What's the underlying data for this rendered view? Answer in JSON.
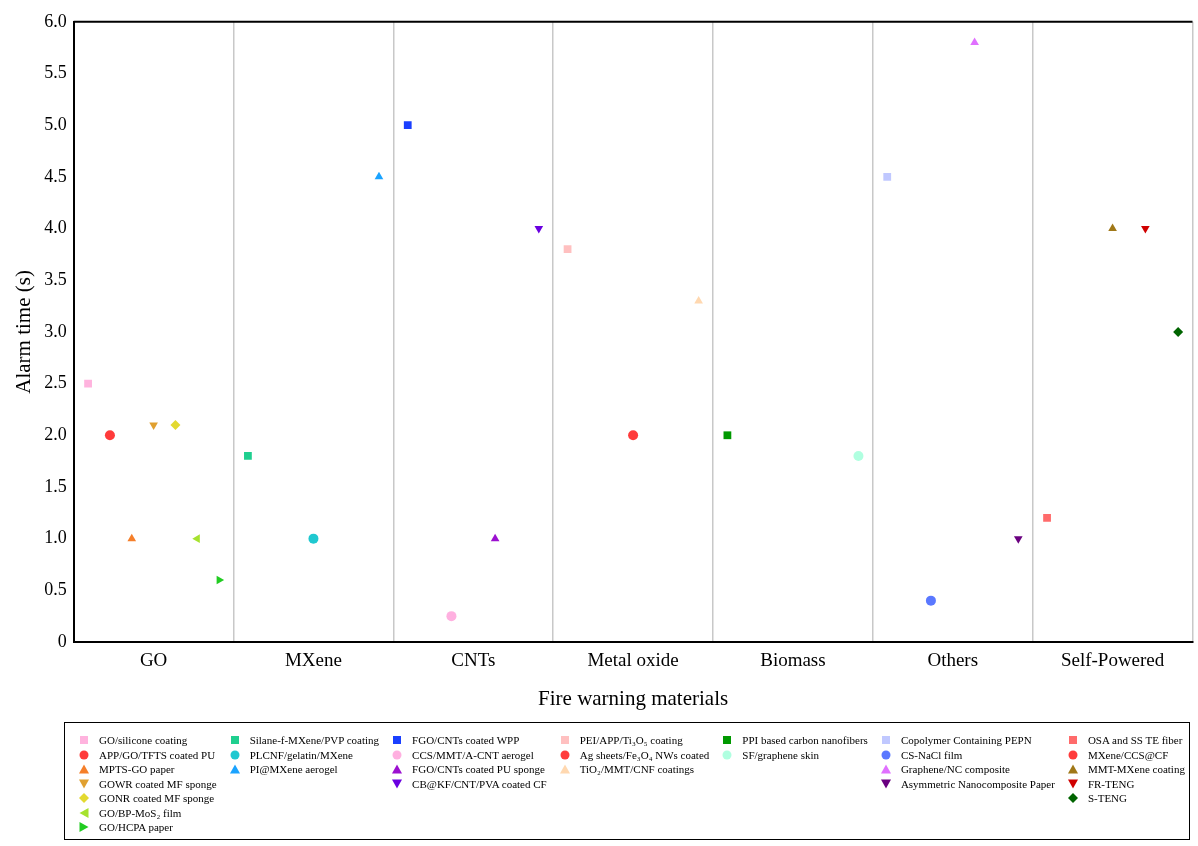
{
  "chart_data": {
    "type": "scatter",
    "xlabel": "Fire warning materials",
    "ylabel": "Alarm time (s)",
    "categories": [
      "GO",
      "MXene",
      "CNTs",
      "Metal oxide",
      "Biomass",
      "Others",
      "Self-Powered"
    ],
    "ylim": [
      0,
      6
    ],
    "yticks": [
      0,
      0.5,
      {
        "value": 1,
        "label": "1.0"
      },
      1.5,
      {
        "value": 2,
        "label": "2.0"
      },
      2.5,
      {
        "value": 3,
        "label": "3.0"
      },
      3.5,
      {
        "value": 4,
        "label": "4.0"
      },
      4.5,
      {
        "value": 5,
        "label": "5.0"
      },
      5.5,
      {
        "value": 6,
        "label": "6.0"
      }
    ],
    "grid": "x",
    "legend": "bottom",
    "series": [
      {
        "name": "GO/silicone coating",
        "color": "#ffb3de",
        "marker": "square",
        "x": [
          "GO"
        ],
        "values": [
          2.5
        ]
      },
      {
        "name": "APP/GO/TFTS coated PU",
        "color": "#ff3b3b",
        "marker": "circle",
        "x": [
          "GO"
        ],
        "values": [
          2.0
        ]
      },
      {
        "name": "MPTS-GO paper",
        "color": "#f57f2a",
        "marker": "triangle",
        "x": [
          "GO"
        ],
        "values": [
          1.0
        ]
      },
      {
        "name": "GOWR coated MF sponge",
        "color": "#e0a030",
        "marker": "triangle-down",
        "x": [
          "GO"
        ],
        "values": [
          2.1
        ]
      },
      {
        "name": "GONR coated MF sponge",
        "color": "#e3d930",
        "marker": "diamond",
        "x": [
          "GO"
        ],
        "values": [
          2.1
        ]
      },
      {
        "name": "GO/BP-MoS₂ film",
        "color": "#a6e22e",
        "marker": "triangle-left",
        "x": [
          "GO"
        ],
        "values": [
          1.0
        ]
      },
      {
        "name": "GO/HCPA paper",
        "color": "#22cc22",
        "marker": "triangle-right",
        "x": [
          "GO"
        ],
        "values": [
          0.6
        ]
      },
      {
        "name": "Silane-f-MXene/PVP coating",
        "color": "#1fcf8f",
        "marker": "square",
        "x": [
          "MXene"
        ],
        "values": [
          1.8
        ]
      },
      {
        "name": "PLCNF/gelatin/MXene",
        "color": "#1fc8d0",
        "marker": "circle",
        "x": [
          "MXene"
        ],
        "values": [
          1.0
        ]
      },
      {
        "name": "PI@MXene aerogel",
        "color": "#1aa3ff",
        "marker": "triangle",
        "x": [
          "MXene"
        ],
        "values": [
          4.5
        ]
      },
      {
        "name": "FGO/CNTs coated WPP",
        "color": "#1a3fff",
        "marker": "square",
        "x": [
          "CNTs"
        ],
        "values": [
          5.0
        ]
      },
      {
        "name": "CCS/MMT/A-CNT aerogel",
        "color": "#ffb0e0",
        "marker": "circle",
        "x": [
          "CNTs"
        ],
        "values": [
          0.25
        ]
      },
      {
        "name": "FGO/CNTs coated PU sponge",
        "color": "#9b10d0",
        "marker": "triangle",
        "x": [
          "CNTs"
        ],
        "values": [
          1.0
        ]
      },
      {
        "name": "CB@KF/CNT/PVA coated CF",
        "color": "#6a00e0",
        "marker": "triangle-down",
        "x": [
          "CNTs"
        ],
        "values": [
          4.0
        ]
      },
      {
        "name": "PEI/APP/Ti₃O₅ coating",
        "color": "#ffc0c0",
        "marker": "square",
        "x": [
          "Metal oxide"
        ],
        "values": [
          3.8
        ]
      },
      {
        "name": "Ag sheets/Fe₃O₄ NWs coated",
        "color": "#ff3b3b",
        "marker": "circle",
        "x": [
          "Metal oxide"
        ],
        "values": [
          2.0
        ]
      },
      {
        "name": "TiO₂/MMT/CNF coatings",
        "color": "#ffd8b0",
        "marker": "triangle",
        "x": [
          "Metal oxide"
        ],
        "values": [
          3.3
        ]
      },
      {
        "name": "PPI based carbon nanofibers",
        "color": "#009900",
        "marker": "square",
        "x": [
          "Biomass"
        ],
        "values": [
          2.0
        ]
      },
      {
        "name": "SF/graphene skin",
        "color": "#b0ffe0",
        "marker": "circle",
        "x": [
          "Biomass"
        ],
        "values": [
          1.8
        ]
      },
      {
        "name": "Copolymer Containing PEPN",
        "color": "#c0c8ff",
        "marker": "square",
        "x": [
          "Others"
        ],
        "values": [
          4.5
        ]
      },
      {
        "name": "CS-NaCl film",
        "color": "#5a78ff",
        "marker": "circle",
        "x": [
          "Others"
        ],
        "values": [
          0.4
        ]
      },
      {
        "name": "Graphene/NC composite",
        "color": "#e070ff",
        "marker": "triangle",
        "x": [
          "Others"
        ],
        "values": [
          5.8
        ]
      },
      {
        "name": "Asymmetric Nanocomposite Paper",
        "color": "#6a0080",
        "marker": "triangle-down",
        "x": [
          "Others"
        ],
        "values": [
          1.0
        ]
      },
      {
        "name": "OSA and SS TE fiber",
        "color": "#ff6b6b",
        "marker": "square",
        "x": [
          "Self-Powered"
        ],
        "values": [
          1.2
        ]
      },
      {
        "name": "MXene/CCS@CF",
        "color": "#ff3b3b",
        "marker": "circle",
        "x": [
          "Self-Powered"
        ],
        "values": [
          null
        ]
      },
      {
        "name": "MMT-MXene coating",
        "color": "#a07818",
        "marker": "triangle",
        "x": [
          "Self-Powered"
        ],
        "values": [
          4.0
        ]
      },
      {
        "name": "FR-TENG",
        "color": "#d00000",
        "marker": "triangle-down",
        "x": [
          "Self-Powered"
        ],
        "values": [
          4.0
        ]
      },
      {
        "name": "S-TENG",
        "color": "#006400",
        "marker": "diamond",
        "x": [
          "Self-Powered"
        ],
        "values": [
          3.0
        ]
      }
    ]
  }
}
